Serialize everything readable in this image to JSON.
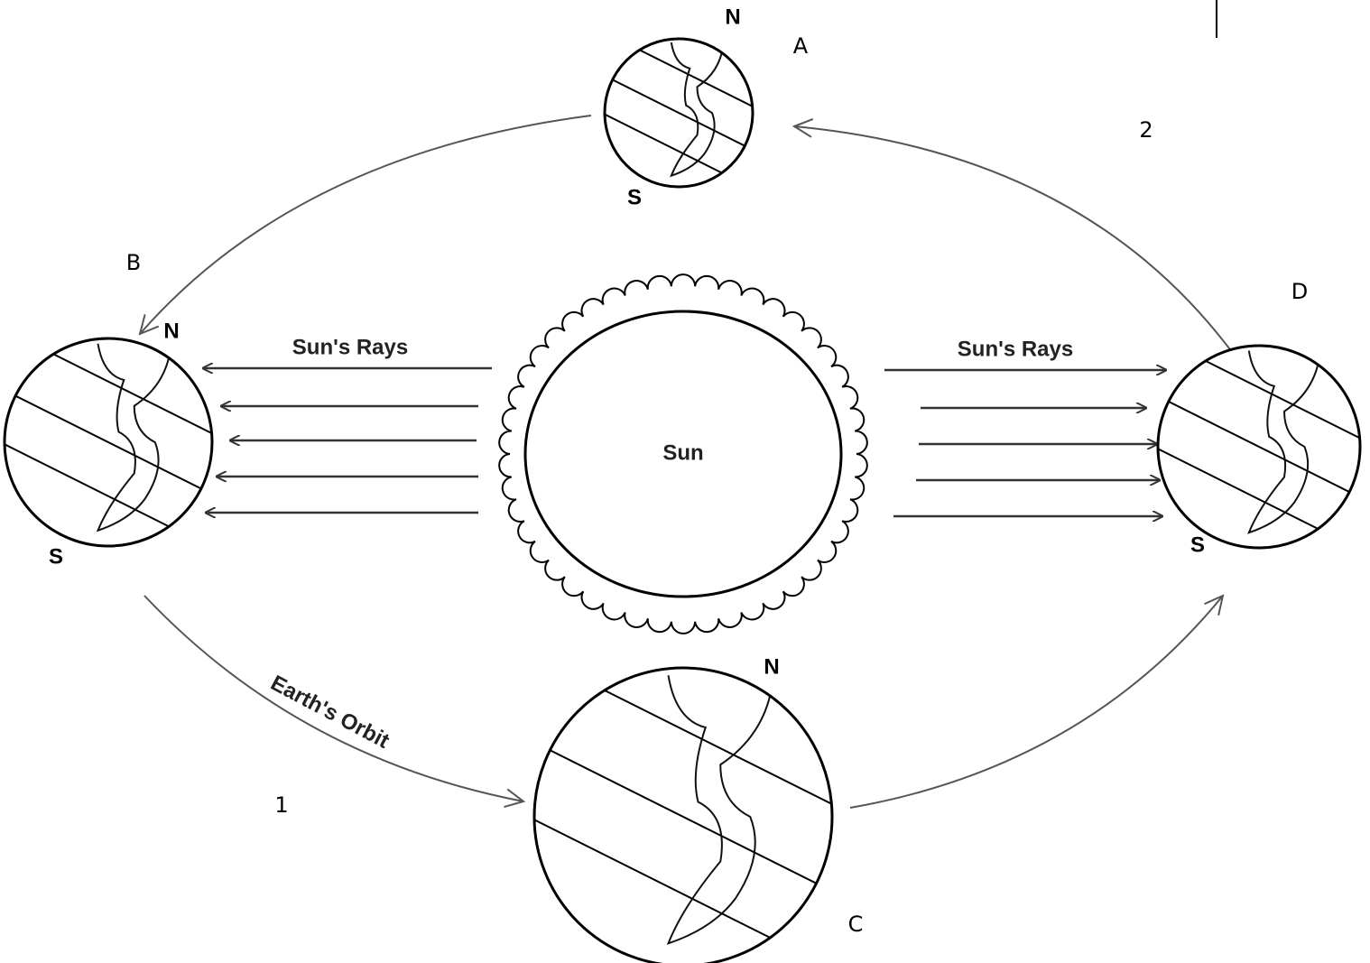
{
  "sun": {
    "label": "Sun"
  },
  "rays": [
    {
      "label": "Sun's Rays"
    },
    {
      "label": "Sun's Rays"
    }
  ],
  "orbit": {
    "label": "Earth's Orbit"
  },
  "earths": [
    {
      "position": "A",
      "north": "N",
      "south": "S"
    },
    {
      "position": "B",
      "north": "N",
      "south": "S"
    },
    {
      "position": "C",
      "north": "N"
    },
    {
      "position": "D",
      "south": "S"
    }
  ],
  "markers": [
    "1",
    "2"
  ]
}
